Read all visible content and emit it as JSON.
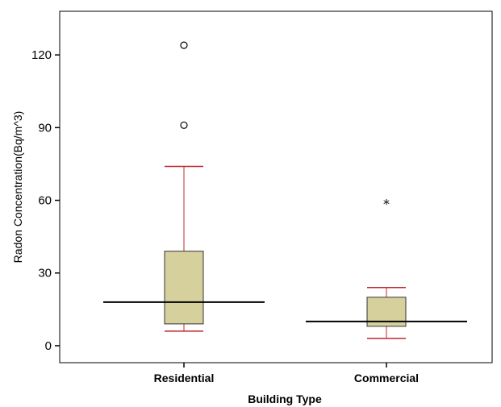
{
  "chart_data": {
    "type": "boxplot",
    "title": "",
    "xlabel": "Building Type",
    "ylabel": "Radon Concentration(Bq/m^3)",
    "ylim": [
      -7,
      138
    ],
    "yticks": [
      0,
      30,
      60,
      90,
      120
    ],
    "categories": [
      "Residential",
      "Commercial"
    ],
    "boxes": [
      {
        "category": "Residential",
        "whisker_low": 6,
        "q1": 9,
        "median": 18,
        "q3": 39,
        "whisker_high": 74,
        "outliers": [
          91,
          124
        ],
        "extremes": []
      },
      {
        "category": "Commercial",
        "whisker_low": 3,
        "q1": 8,
        "median": 10,
        "q3": 20,
        "whisker_high": 24,
        "outliers": [],
        "extremes": [
          59
        ]
      }
    ],
    "grid": false,
    "legend": "none"
  },
  "colors": {
    "box_fill": "#d6d19c",
    "whisker": "#c0272d",
    "median": "#000000",
    "axis": "#000000"
  }
}
